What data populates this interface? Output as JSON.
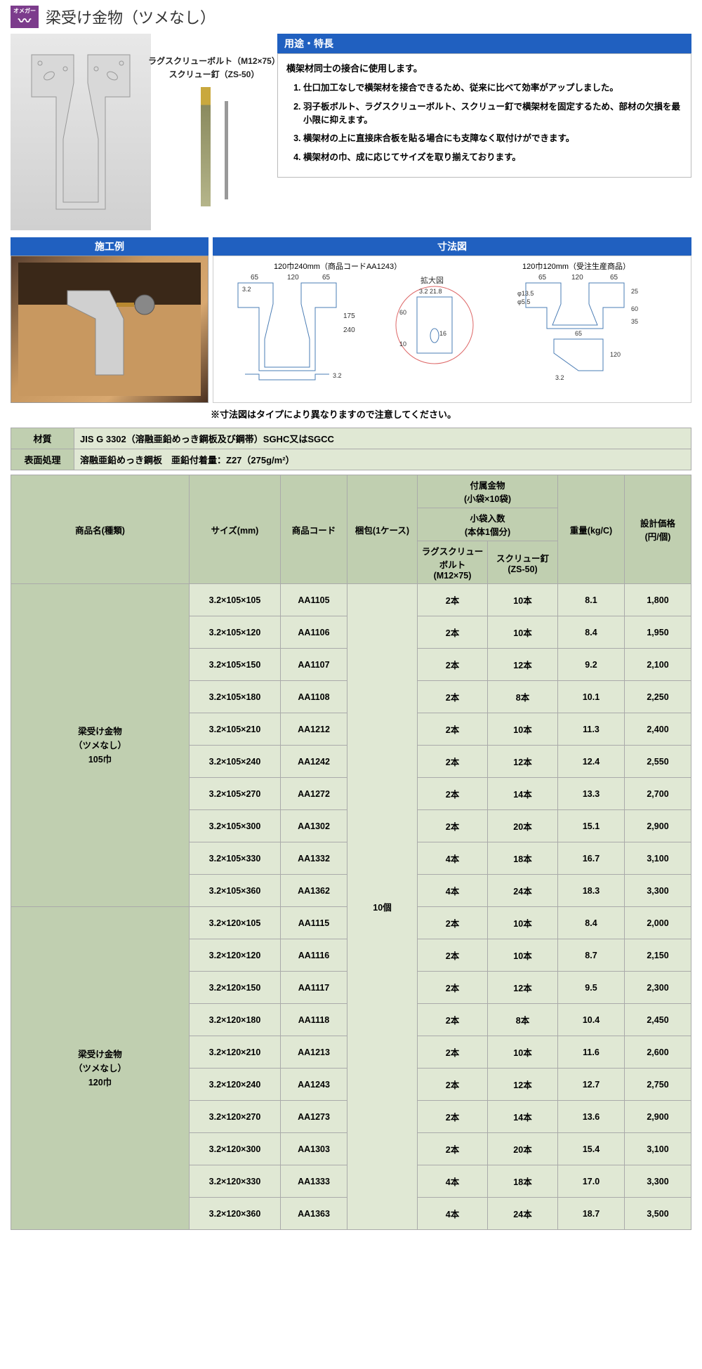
{
  "header": {
    "logo_text": "オメガー",
    "title": "梁受け金物（ツメなし）"
  },
  "screws": {
    "label1": "ラグスクリューボルト（M12×75）",
    "label2": "スクリュー釘（ZS-50）"
  },
  "features": {
    "header": "用途・特長",
    "intro": "横架材同士の接合に使用します。",
    "items": [
      "仕口加工なしで横架材を接合できるため、従来に比べて効率がアップしました。",
      "羽子板ボルト、ラグスクリューボルト、スクリュー釘で横架材を固定するため、部材の欠損を最小限に抑えます。",
      "横架材の上に直接床合板を貼る場合にも支障なく取付けができます。",
      "横架材の巾、成に応じてサイズを取り揃えております。"
    ]
  },
  "sections": {
    "install": "施工例",
    "dimensions": "寸法図",
    "dim_label1": "120巾240mm（商品コードAA1243）",
    "dim_label2": "120巾120mm（受注生産商品）",
    "dim_expand": "拡大図"
  },
  "dim_note": "※寸法図はタイプにより異なりますので注意してください。",
  "spec": {
    "material_label": "材質",
    "material_value": "JIS G 3302（溶融亜鉛めっき鋼板及び鋼帯）SGHC又はSGCC",
    "surface_label": "表面処理",
    "surface_value": "溶融亜鉛めっき鋼板　亜鉛付着量：Z27（275g/m²）"
  },
  "table": {
    "headers": {
      "name": "商品名(種類)",
      "size": "サイズ(mm)",
      "code": "商品コード",
      "pack": "梱包(1ケース)",
      "accessories": "付属金物\n(小袋×10袋)",
      "bag_count": "小袋入数\n(本体1個分)",
      "lag": "ラグスクリュー\nボルト\n(M12×75)",
      "screw": "スクリュー釘\n(ZS-50)",
      "weight": "重量(kg/C)",
      "price": "設計価格\n(円/個)"
    },
    "pack_value": "10個",
    "groups": [
      {
        "name": "梁受け金物\n（ツメなし）\n105巾",
        "rows": [
          {
            "size": "3.2×105×105",
            "code": "AA1105",
            "lag": "2本",
            "screw": "10本",
            "weight": "8.1",
            "price": "1,800"
          },
          {
            "size": "3.2×105×120",
            "code": "AA1106",
            "lag": "2本",
            "screw": "10本",
            "weight": "8.4",
            "price": "1,950"
          },
          {
            "size": "3.2×105×150",
            "code": "AA1107",
            "lag": "2本",
            "screw": "12本",
            "weight": "9.2",
            "price": "2,100"
          },
          {
            "size": "3.2×105×180",
            "code": "AA1108",
            "lag": "2本",
            "screw": "8本",
            "weight": "10.1",
            "price": "2,250"
          },
          {
            "size": "3.2×105×210",
            "code": "AA1212",
            "lag": "2本",
            "screw": "10本",
            "weight": "11.3",
            "price": "2,400"
          },
          {
            "size": "3.2×105×240",
            "code": "AA1242",
            "lag": "2本",
            "screw": "12本",
            "weight": "12.4",
            "price": "2,550"
          },
          {
            "size": "3.2×105×270",
            "code": "AA1272",
            "lag": "2本",
            "screw": "14本",
            "weight": "13.3",
            "price": "2,700"
          },
          {
            "size": "3.2×105×300",
            "code": "AA1302",
            "lag": "2本",
            "screw": "20本",
            "weight": "15.1",
            "price": "2,900"
          },
          {
            "size": "3.2×105×330",
            "code": "AA1332",
            "lag": "4本",
            "screw": "18本",
            "weight": "16.7",
            "price": "3,100"
          },
          {
            "size": "3.2×105×360",
            "code": "AA1362",
            "lag": "4本",
            "screw": "24本",
            "weight": "18.3",
            "price": "3,300"
          }
        ]
      },
      {
        "name": "梁受け金物\n（ツメなし）\n120巾",
        "rows": [
          {
            "size": "3.2×120×105",
            "code": "AA1115",
            "lag": "2本",
            "screw": "10本",
            "weight": "8.4",
            "price": "2,000"
          },
          {
            "size": "3.2×120×120",
            "code": "AA1116",
            "lag": "2本",
            "screw": "10本",
            "weight": "8.7",
            "price": "2,150"
          },
          {
            "size": "3.2×120×150",
            "code": "AA1117",
            "lag": "2本",
            "screw": "12本",
            "weight": "9.5",
            "price": "2,300"
          },
          {
            "size": "3.2×120×180",
            "code": "AA1118",
            "lag": "2本",
            "screw": "8本",
            "weight": "10.4",
            "price": "2,450"
          },
          {
            "size": "3.2×120×210",
            "code": "AA1213",
            "lag": "2本",
            "screw": "10本",
            "weight": "11.6",
            "price": "2,600"
          },
          {
            "size": "3.2×120×240",
            "code": "AA1243",
            "lag": "2本",
            "screw": "12本",
            "weight": "12.7",
            "price": "2,750"
          },
          {
            "size": "3.2×120×270",
            "code": "AA1273",
            "lag": "2本",
            "screw": "14本",
            "weight": "13.6",
            "price": "2,900"
          },
          {
            "size": "3.2×120×300",
            "code": "AA1303",
            "lag": "2本",
            "screw": "20本",
            "weight": "15.4",
            "price": "3,100"
          },
          {
            "size": "3.2×120×330",
            "code": "AA1333",
            "lag": "4本",
            "screw": "18本",
            "weight": "17.0",
            "price": "3,300"
          },
          {
            "size": "3.2×120×360",
            "code": "AA1363",
            "lag": "4本",
            "screw": "24本",
            "weight": "18.7",
            "price": "3,500"
          }
        ]
      }
    ]
  }
}
